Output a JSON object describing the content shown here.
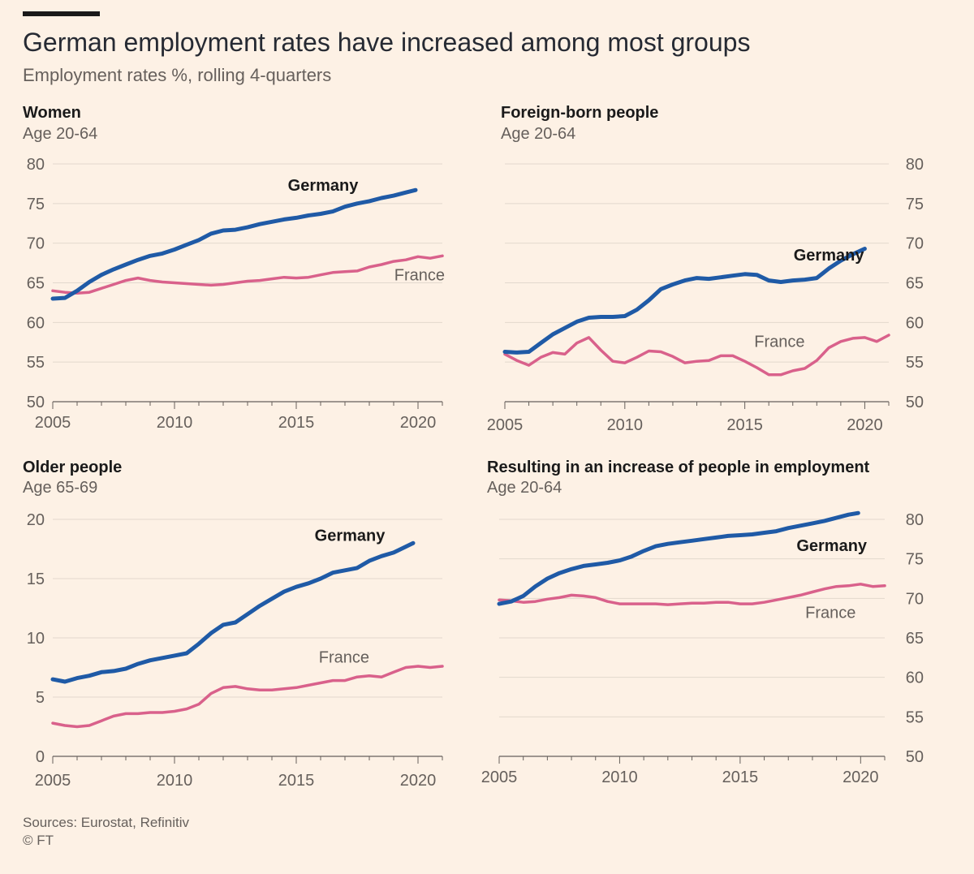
{
  "header": {
    "title": "German employment rates have increased among most groups",
    "subtitle": "Employment rates %, rolling 4-quarters"
  },
  "footer": {
    "sources": "Sources: Eurostat, Refinitiv",
    "copyright": "© FT"
  },
  "colors": {
    "germany": "#1f5aa6",
    "france": "#d9618b",
    "grid": "#e2d8cd",
    "axis": "#66605c"
  },
  "chart_data": [
    {
      "type": "line",
      "title": "Women",
      "subtitle": "Age 20-64",
      "xlim": [
        2005,
        2021
      ],
      "ylim": [
        50,
        80
      ],
      "yticks": [
        50,
        55,
        60,
        65,
        70,
        75,
        80
      ],
      "xticks": [
        2005,
        2010,
        2015,
        2020
      ],
      "yaxis_side": "left",
      "series": [
        {
          "name": "Germany",
          "color": "#1f5aa6",
          "x": [
            2005,
            2005.5,
            2006,
            2006.5,
            2007,
            2007.5,
            2008,
            2008.5,
            2009,
            2009.5,
            2010,
            2010.5,
            2011,
            2011.5,
            2012,
            2012.5,
            2013,
            2013.5,
            2014,
            2014.5,
            2015,
            2015.5,
            2016,
            2016.5,
            2017,
            2017.5,
            2018,
            2018.5,
            2019,
            2019.5,
            2019.9
          ],
          "y": [
            63,
            63.1,
            64,
            65.1,
            66,
            66.7,
            67.3,
            67.9,
            68.4,
            68.7,
            69.2,
            69.8,
            70.4,
            71.2,
            71.6,
            71.7,
            72,
            72.4,
            72.7,
            73,
            73.2,
            73.5,
            73.7,
            74,
            74.6,
            75,
            75.3,
            75.7,
            76,
            76.4,
            76.7
          ]
        },
        {
          "name": "France",
          "color": "#d9618b",
          "x": [
            2005,
            2005.5,
            2006,
            2006.5,
            2007,
            2007.5,
            2008,
            2008.5,
            2009,
            2009.5,
            2010,
            2010.5,
            2011,
            2011.5,
            2012,
            2012.5,
            2013,
            2013.5,
            2014,
            2014.5,
            2015,
            2015.5,
            2016,
            2016.5,
            2017,
            2017.5,
            2018,
            2018.5,
            2019,
            2019.5,
            2020,
            2020.5,
            2021
          ],
          "y": [
            64,
            63.8,
            63.7,
            63.8,
            64.3,
            64.8,
            65.3,
            65.6,
            65.3,
            65.1,
            65,
            64.9,
            64.8,
            64.7,
            64.8,
            65,
            65.2,
            65.3,
            65.5,
            65.7,
            65.6,
            65.7,
            66,
            66.3,
            66.4,
            66.5,
            67,
            67.3,
            67.7,
            67.9,
            68.3,
            68.1,
            68.4
          ]
        }
      ],
      "labels": {
        "germany": "Germany",
        "france": "France"
      }
    },
    {
      "type": "line",
      "title": "Foreign-born people",
      "subtitle": "Age 20-64",
      "xlim": [
        2005,
        2021
      ],
      "ylim": [
        50,
        80
      ],
      "yticks": [
        50,
        55,
        60,
        65,
        70,
        75,
        80
      ],
      "xticks": [
        2005,
        2010,
        2015,
        2020
      ],
      "yaxis_side": "right",
      "series": [
        {
          "name": "Germany",
          "color": "#1f5aa6",
          "x": [
            2005,
            2005.5,
            2006,
            2006.5,
            2007,
            2007.5,
            2008,
            2008.5,
            2009,
            2009.5,
            2010,
            2010.5,
            2011,
            2011.5,
            2012,
            2012.5,
            2013,
            2013.5,
            2014,
            2014.5,
            2015,
            2015.5,
            2016,
            2016.5,
            2017,
            2017.5,
            2018,
            2018.5,
            2019,
            2019.5,
            2020
          ],
          "y": [
            56.3,
            56.2,
            56.3,
            57.4,
            58.5,
            59.3,
            60.1,
            60.6,
            60.7,
            60.7,
            60.8,
            61.6,
            62.8,
            64.2,
            64.8,
            65.3,
            65.6,
            65.5,
            65.7,
            65.9,
            66.1,
            66,
            65.3,
            65.1,
            65.3,
            65.4,
            65.6,
            66.8,
            67.8,
            68.6,
            69.3
          ]
        },
        {
          "name": "France",
          "color": "#d9618b",
          "x": [
            2005,
            2005.5,
            2006,
            2006.5,
            2007,
            2007.5,
            2008,
            2008.5,
            2009,
            2009.5,
            2010,
            2010.5,
            2011,
            2011.5,
            2012,
            2012.5,
            2013,
            2013.5,
            2014,
            2014.5,
            2015,
            2015.5,
            2016,
            2016.5,
            2017,
            2017.5,
            2018,
            2018.5,
            2019,
            2019.5,
            2020,
            2020.5,
            2021
          ],
          "y": [
            56,
            55.2,
            54.6,
            55.6,
            56.2,
            56,
            57.4,
            58.1,
            56.5,
            55.1,
            54.9,
            55.6,
            56.4,
            56.3,
            55.7,
            54.9,
            55.1,
            55.2,
            55.8,
            55.8,
            55.1,
            54.3,
            53.4,
            53.4,
            53.9,
            54.2,
            55.2,
            56.8,
            57.6,
            58,
            58.1,
            57.6,
            58.4
          ]
        }
      ],
      "labels": {
        "germany": "Germany",
        "france": "France"
      }
    },
    {
      "type": "line",
      "title": "Older people",
      "subtitle": "Age 65-69",
      "xlim": [
        2005,
        2021
      ],
      "ylim": [
        0,
        20
      ],
      "yticks": [
        0,
        5,
        10,
        15,
        20
      ],
      "xticks": [
        2005,
        2010,
        2015,
        2020
      ],
      "yaxis_side": "left",
      "series": [
        {
          "name": "Germany",
          "color": "#1f5aa6",
          "x": [
            2005,
            2005.5,
            2006,
            2006.5,
            2007,
            2007.5,
            2008,
            2008.5,
            2009,
            2009.5,
            2010,
            2010.5,
            2011,
            2011.5,
            2012,
            2012.5,
            2013,
            2013.5,
            2014,
            2014.5,
            2015,
            2015.5,
            2016,
            2016.5,
            2017,
            2017.5,
            2018,
            2018.5,
            2019,
            2019.5,
            2019.8
          ],
          "y": [
            6.5,
            6.3,
            6.6,
            6.8,
            7.1,
            7.2,
            7.4,
            7.8,
            8.1,
            8.3,
            8.5,
            8.7,
            9.5,
            10.4,
            11.1,
            11.3,
            12,
            12.7,
            13.3,
            13.9,
            14.3,
            14.6,
            15,
            15.5,
            15.7,
            15.9,
            16.5,
            16.9,
            17.2,
            17.7,
            18
          ]
        },
        {
          "name": "France",
          "color": "#d9618b",
          "x": [
            2005,
            2005.5,
            2006,
            2006.5,
            2007,
            2007.5,
            2008,
            2008.5,
            2009,
            2009.5,
            2010,
            2010.5,
            2011,
            2011.5,
            2012,
            2012.5,
            2013,
            2013.5,
            2014,
            2014.5,
            2015,
            2015.5,
            2016,
            2016.5,
            2017,
            2017.5,
            2018,
            2018.5,
            2019,
            2019.5,
            2020,
            2020.5,
            2021
          ],
          "y": [
            2.8,
            2.6,
            2.5,
            2.6,
            3,
            3.4,
            3.6,
            3.6,
            3.7,
            3.7,
            3.8,
            4,
            4.4,
            5.3,
            5.8,
            5.9,
            5.7,
            5.6,
            5.6,
            5.7,
            5.8,
            6,
            6.2,
            6.4,
            6.4,
            6.7,
            6.8,
            6.7,
            7.1,
            7.5,
            7.6,
            7.5,
            7.6
          ]
        }
      ],
      "labels": {
        "germany": "Germany",
        "france": "France"
      }
    },
    {
      "type": "line",
      "title": "Resulting in an increase of people in employment",
      "subtitle": "Age 20-64",
      "xlim": [
        2005,
        2021
      ],
      "ylim": [
        50,
        80
      ],
      "yticks": [
        50,
        55,
        60,
        65,
        70,
        75,
        80
      ],
      "xticks": [
        2005,
        2010,
        2015,
        2020
      ],
      "yaxis_side": "right",
      "series": [
        {
          "name": "Germany",
          "color": "#1f5aa6",
          "x": [
            2005,
            2005.5,
            2006,
            2006.5,
            2007,
            2007.5,
            2008,
            2008.5,
            2009,
            2009.5,
            2010,
            2010.5,
            2011,
            2011.5,
            2012,
            2012.5,
            2013,
            2013.5,
            2014,
            2014.5,
            2015,
            2015.5,
            2016,
            2016.5,
            2017,
            2017.5,
            2018,
            2018.5,
            2019,
            2019.5,
            2019.9
          ],
          "y": [
            69.3,
            69.6,
            70.3,
            71.5,
            72.5,
            73.2,
            73.7,
            74.1,
            74.3,
            74.5,
            74.8,
            75.3,
            76,
            76.6,
            76.9,
            77.1,
            77.3,
            77.5,
            77.7,
            77.9,
            78,
            78.1,
            78.3,
            78.5,
            78.9,
            79.2,
            79.5,
            79.8,
            80.2,
            80.6,
            80.8
          ]
        },
        {
          "name": "France",
          "color": "#d9618b",
          "x": [
            2005,
            2005.5,
            2006,
            2006.5,
            2007,
            2007.5,
            2008,
            2008.5,
            2009,
            2009.5,
            2010,
            2010.5,
            2011,
            2011.5,
            2012,
            2012.5,
            2013,
            2013.5,
            2014,
            2014.5,
            2015,
            2015.5,
            2016,
            2016.5,
            2017,
            2017.5,
            2018,
            2018.5,
            2019,
            2019.5,
            2020,
            2020.5,
            2021
          ],
          "y": [
            69.8,
            69.7,
            69.5,
            69.6,
            69.9,
            70.1,
            70.4,
            70.3,
            70.1,
            69.6,
            69.3,
            69.3,
            69.3,
            69.3,
            69.2,
            69.3,
            69.4,
            69.4,
            69.5,
            69.5,
            69.3,
            69.3,
            69.5,
            69.8,
            70.1,
            70.4,
            70.8,
            71.2,
            71.5,
            71.6,
            71.8,
            71.5,
            71.6
          ]
        }
      ],
      "labels": {
        "germany": "Germany",
        "france": "France"
      }
    }
  ]
}
